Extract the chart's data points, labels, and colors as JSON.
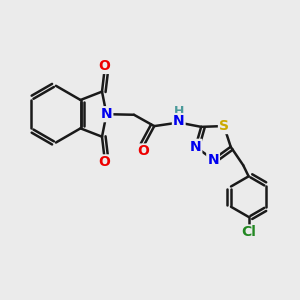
{
  "bg_color": "#ebebeb",
  "bond_color": "#1a1a1a",
  "bond_width": 1.8,
  "atom_colors": {
    "N": "#0000ee",
    "O": "#ee0000",
    "S": "#ccaa00",
    "Cl": "#228822",
    "H": "#4a9a9a",
    "C": "#1a1a1a"
  },
  "font_size": 10,
  "fig_size": [
    3.0,
    3.0
  ],
  "dpi": 100,
  "xlim": [
    0,
    10
  ],
  "ylim": [
    0,
    10
  ]
}
